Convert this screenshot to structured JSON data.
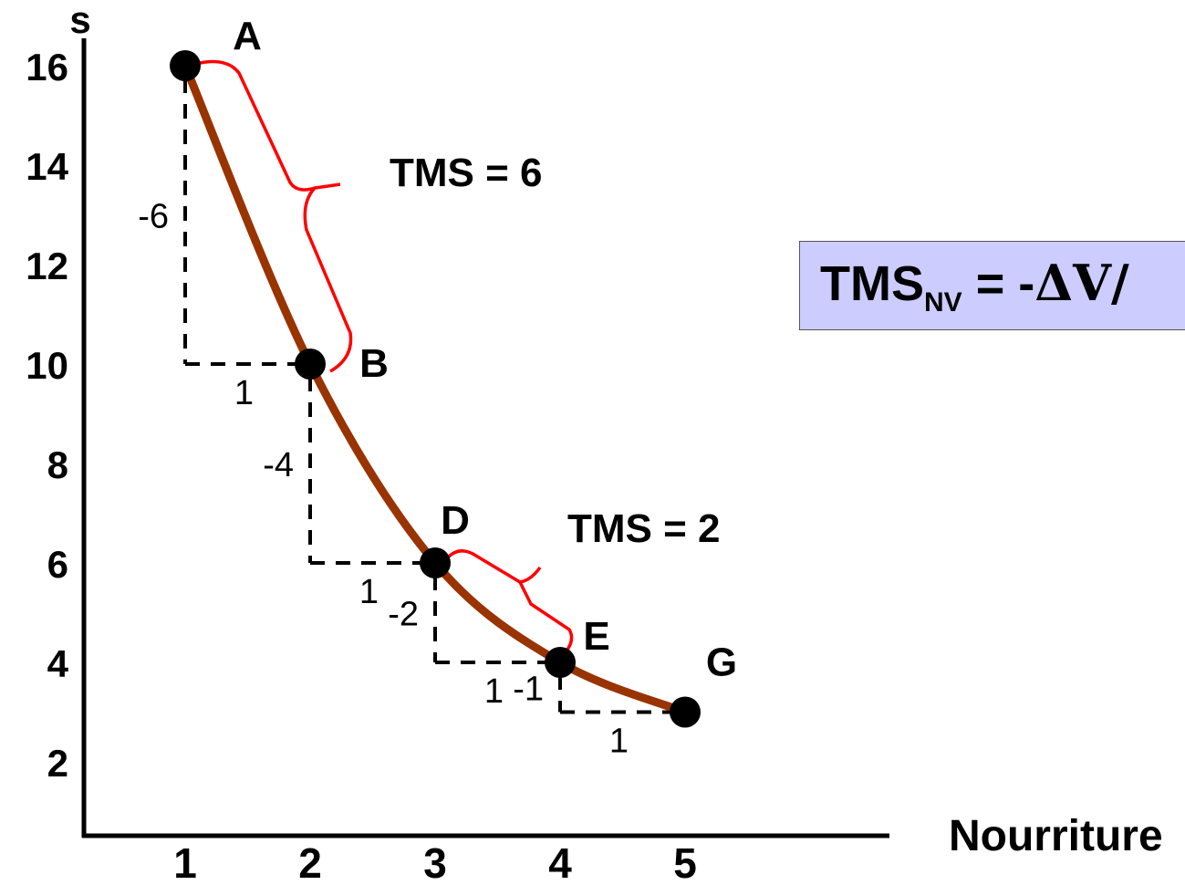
{
  "chart_data": {
    "type": "line",
    "x_axis": {
      "label": "Nourriture",
      "ticks": [
        "1",
        "2",
        "3",
        "4",
        "5"
      ]
    },
    "y_axis": {
      "label": "s",
      "ticks": [
        "2",
        "4",
        "6",
        "8",
        "10",
        "12",
        "14",
        "16"
      ]
    },
    "series": [
      {
        "points": [
          {
            "label": "A",
            "x": 1,
            "y": 16
          },
          {
            "label": "B",
            "x": 2,
            "y": 10
          },
          {
            "label": "D",
            "x": 3,
            "y": 6
          },
          {
            "label": "E",
            "x": 4,
            "y": 4
          },
          {
            "label": "G",
            "x": 5,
            "y": 3
          }
        ]
      }
    ],
    "steps": [
      {
        "from": "A",
        "to": "B",
        "dy_label": "-6",
        "dx_label": "1"
      },
      {
        "from": "B",
        "to": "D",
        "dy_label": "-4",
        "dx_label": "1"
      },
      {
        "from": "D",
        "to": "E",
        "dy_label": "-2",
        "dx_label": "1"
      },
      {
        "from": "E",
        "to": "G",
        "dy_label": "-1",
        "dx_label": "1"
      }
    ],
    "annotations": [
      {
        "text": "TMS = 6",
        "between": [
          "A",
          "B"
        ]
      },
      {
        "text": "TMS = 2",
        "between": [
          "D",
          "E"
        ]
      }
    ],
    "formula": {
      "main": "TMS",
      "sub": "NV",
      "rest": " = -",
      "delta": "ΔV/"
    },
    "colors": {
      "curve": "#993300",
      "brace": "#ff0000",
      "box_bg": "#ccccff",
      "points": "#000000"
    }
  }
}
